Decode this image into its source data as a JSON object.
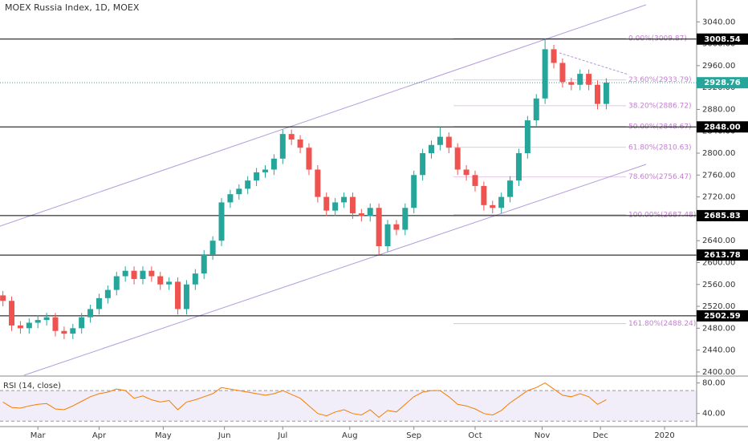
{
  "chart_data": [
    {
      "type": "candlestick",
      "title": "MOEX Russia Index, 1D, MOEX",
      "x": [
        -12,
        -9,
        -6,
        -3,
        0,
        3,
        6,
        9,
        12,
        15,
        18,
        21,
        24,
        27,
        30,
        33,
        36,
        39,
        42,
        45,
        48,
        51,
        54,
        57,
        60,
        63,
        66,
        69,
        72,
        75,
        78,
        81,
        84,
        87,
        90,
        93,
        96,
        99,
        102,
        105,
        108,
        111,
        114,
        117,
        120,
        123,
        126,
        129,
        132,
        135,
        138,
        141,
        144,
        147,
        150,
        153,
        156,
        159,
        162,
        165,
        168,
        171,
        174,
        177,
        180,
        183,
        186,
        189,
        192,
        195
      ],
      "open": [
        2540,
        2530,
        2485,
        2480,
        2490,
        2495,
        2500,
        2475,
        2470,
        2480,
        2500,
        2515,
        2535,
        2550,
        2575,
        2585,
        2570,
        2585,
        2575,
        2560,
        2565,
        2515,
        2560,
        2580,
        2615,
        2640,
        2710,
        2725,
        2735,
        2750,
        2765,
        2770,
        2790,
        2835,
        2825,
        2810,
        2770,
        2720,
        2695,
        2710,
        2720,
        2690,
        2685,
        2700,
        2630,
        2670,
        2660,
        2700,
        2760,
        2800,
        2815,
        2830,
        2810,
        2770,
        2760,
        2740,
        2705,
        2700,
        2720,
        2750,
        2800,
        2860,
        2900,
        2990,
        2965,
        2930,
        2925,
        2945,
        2925,
        2890
      ],
      "high": [
        2548,
        2538,
        2493,
        2498,
        2503,
        2508,
        2508,
        2483,
        2488,
        2508,
        2523,
        2543,
        2558,
        2583,
        2593,
        2593,
        2593,
        2593,
        2583,
        2573,
        2573,
        2568,
        2588,
        2623,
        2648,
        2718,
        2733,
        2743,
        2758,
        2773,
        2778,
        2798,
        2843,
        2843,
        2833,
        2818,
        2778,
        2728,
        2718,
        2728,
        2728,
        2698,
        2708,
        2708,
        2678,
        2678,
        2708,
        2768,
        2808,
        2823,
        2848,
        2838,
        2818,
        2778,
        2768,
        2748,
        2713,
        2728,
        2758,
        2808,
        2868,
        2908,
        3009,
        2998,
        2973,
        2938,
        2953,
        2953,
        2933,
        2937
      ],
      "low": [
        2520,
        2475,
        2470,
        2470,
        2480,
        2485,
        2465,
        2460,
        2460,
        2470,
        2490,
        2505,
        2525,
        2540,
        2565,
        2560,
        2560,
        2565,
        2550,
        2550,
        2505,
        2505,
        2550,
        2570,
        2605,
        2630,
        2700,
        2715,
        2725,
        2740,
        2755,
        2760,
        2780,
        2815,
        2800,
        2760,
        2710,
        2685,
        2685,
        2700,
        2680,
        2675,
        2675,
        2615,
        2620,
        2650,
        2650,
        2690,
        2750,
        2790,
        2805,
        2800,
        2760,
        2750,
        2730,
        2695,
        2690,
        2690,
        2710,
        2740,
        2790,
        2850,
        2890,
        2955,
        2920,
        2915,
        2915,
        2915,
        2880,
        2880
      ],
      "close": [
        2530,
        2485,
        2480,
        2490,
        2495,
        2500,
        2475,
        2470,
        2480,
        2500,
        2515,
        2535,
        2550,
        2575,
        2585,
        2570,
        2585,
        2575,
        2560,
        2565,
        2515,
        2560,
        2580,
        2615,
        2640,
        2710,
        2725,
        2735,
        2750,
        2765,
        2770,
        2790,
        2835,
        2825,
        2810,
        2770,
        2720,
        2695,
        2710,
        2720,
        2690,
        2685,
        2700,
        2630,
        2670,
        2660,
        2700,
        2760,
        2800,
        2815,
        2830,
        2810,
        2770,
        2760,
        2740,
        2705,
        2700,
        2720,
        2750,
        2800,
        2860,
        2900,
        2990,
        2965,
        2930,
        2925,
        2945,
        2925,
        2890,
        2929
      ],
      "up_color": "#26a69a",
      "down_color": "#ef5350",
      "xlim": [
        -13,
        226
      ],
      "ylim": [
        2394,
        3080
      ],
      "xticks": [
        {
          "value": 0,
          "label": "Mar"
        },
        {
          "value": 21,
          "label": "Apr"
        },
        {
          "value": 43,
          "label": "May"
        },
        {
          "value": 64,
          "label": "Jun"
        },
        {
          "value": 84,
          "label": "Jul"
        },
        {
          "value": 107,
          "label": "Aug"
        },
        {
          "value": 129,
          "label": "Sep"
        },
        {
          "value": 150,
          "label": "Oct"
        },
        {
          "value": 173,
          "label": "Nov"
        },
        {
          "value": 193,
          "label": "Dec"
        },
        {
          "value": 215,
          "label": "2020"
        }
      ],
      "yticks": [
        {
          "value": 2400,
          "label": "2400.00"
        },
        {
          "value": 2440,
          "label": "2440.00"
        },
        {
          "value": 2480,
          "label": "2480.00"
        },
        {
          "value": 2520,
          "label": "2520.00"
        },
        {
          "value": 2560,
          "label": "2560.00"
        },
        {
          "value": 2600,
          "label": "2600.00"
        },
        {
          "value": 2640,
          "label": "2640.00"
        },
        {
          "value": 2680,
          "label": "2680.00"
        },
        {
          "value": 2720,
          "label": "2720.00"
        },
        {
          "value": 2760,
          "label": "2760.00"
        },
        {
          "value": 2800,
          "label": "2800.00"
        },
        {
          "value": 2840,
          "label": "2840.00"
        },
        {
          "value": 2880,
          "label": "2880.00"
        },
        {
          "value": 2920,
          "label": "2920.00"
        },
        {
          "value": 2960,
          "label": "2960.00"
        },
        {
          "value": 3000,
          "label": "3000.00"
        },
        {
          "value": 3040,
          "label": "3040.00"
        }
      ],
      "levels": [
        3008.54,
        {
          "value": 2848,
          "label": "2848.00"
        },
        2685.83,
        2613.78,
        2502.59
      ],
      "level_color": "#000000",
      "last_price": 2928.76,
      "last_color": "#26a69a",
      "fib": [
        {
          "value": 3009.87,
          "label": "0.00%(3009.87)"
        },
        {
          "value": 2933.79,
          "label": "23.60%(2933.79)"
        },
        {
          "value": 2886.72,
          "label": "38.20%(2886.72)"
        },
        {
          "value": 2848.67,
          "label": "50.00%(2848.67)"
        },
        {
          "value": 2810.63,
          "label": "61.80%(2810.63)"
        },
        {
          "value": 2756.47,
          "label": "78.60%(2756.47)"
        },
        {
          "value": 2687.48,
          "label": "100.00%(2687.48)"
        },
        {
          "value": 2488.24,
          "label": "161.80%(2488.24)"
        }
      ],
      "fib_color": "#c37fd1"
    },
    {
      "type": "line",
      "title": "RSI (14, close)",
      "x": [
        -12,
        -9,
        -6,
        -3,
        0,
        3,
        6,
        9,
        12,
        15,
        18,
        21,
        24,
        27,
        30,
        33,
        36,
        39,
        42,
        45,
        48,
        51,
        54,
        57,
        60,
        63,
        66,
        69,
        72,
        75,
        78,
        81,
        84,
        87,
        90,
        93,
        96,
        99,
        102,
        105,
        108,
        111,
        114,
        117,
        120,
        123,
        126,
        129,
        132,
        135,
        138,
        141,
        144,
        147,
        150,
        153,
        156,
        159,
        162,
        165,
        168,
        171,
        174,
        177,
        180,
        183,
        186,
        189,
        192,
        195
      ],
      "values": [
        55,
        48,
        47,
        50,
        52,
        53,
        46,
        45,
        50,
        56,
        62,
        66,
        68,
        72,
        70,
        60,
        63,
        58,
        55,
        57,
        45,
        55,
        58,
        62,
        66,
        74,
        72,
        70,
        68,
        66,
        64,
        66,
        70,
        65,
        60,
        50,
        40,
        37,
        42,
        45,
        40,
        38,
        45,
        35,
        44,
        42,
        52,
        62,
        68,
        70,
        70,
        62,
        52,
        50,
        46,
        40,
        38,
        44,
        54,
        62,
        70,
        74,
        80,
        72,
        64,
        62,
        66,
        62,
        52,
        58
      ],
      "color": "#f57c00",
      "xlim": [
        -13,
        226
      ],
      "ylim": [
        25,
        88
      ],
      "yticks": [
        {
          "value": 80,
          "label": "80.00"
        },
        {
          "value": 40,
          "label": "40.00"
        }
      ],
      "band": [
        30,
        70
      ],
      "band_color": "#7e57c2"
    }
  ]
}
